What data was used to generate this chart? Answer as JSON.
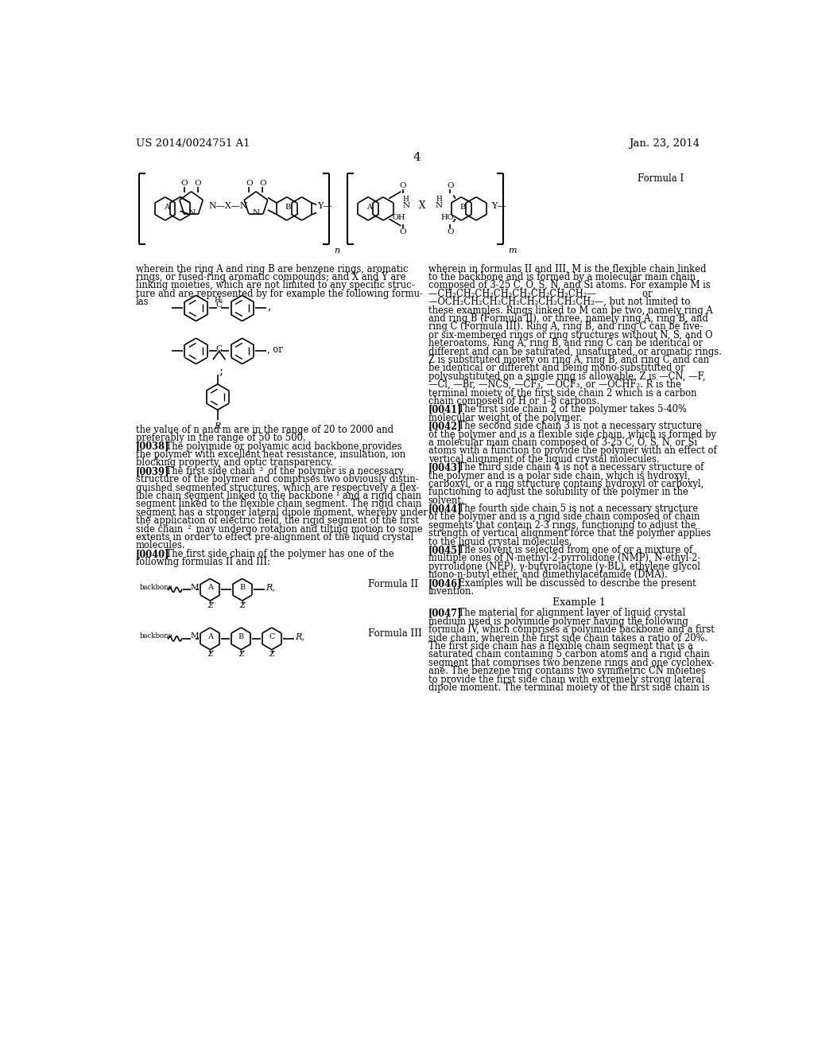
{
  "header_left": "US 2014/0024751 A1",
  "header_right": "Jan. 23, 2014",
  "page_number": "4",
  "formula_I_label": "Formula I",
  "formula_II_label": "Formula II",
  "formula_III_label": "Formula III",
  "background": "#ffffff",
  "text_color": "#000000",
  "body_text_left": [
    "wherein the ring A and ring B are benzene rings, aromatic",
    "rings, or fused-ring aromatic compounds; and X and Y are",
    "linking moieties, which are not limited to any specific struc-",
    "ture and are represented by for example the following formu-",
    "las"
  ],
  "body_text_left2": [
    [
      "normal",
      "the value of n and m are in the range of 20 to 2000 and"
    ],
    [
      "normal",
      "preferably in the range of 50 to 500."
    ],
    [
      "bold",
      "[0038]"
    ],
    [
      "normal",
      "    The polyimide or polyamic acid backbone provides"
    ],
    [
      "normal",
      "the polymer with excellent heat resistance, insulation, ion"
    ],
    [
      "normal",
      "blocking property, and optic transparency."
    ],
    [
      "bold",
      "[0039]"
    ],
    [
      "normal",
      "    The first side chain "
    ],
    [
      "bold",
      "2"
    ],
    [
      "normal",
      " of the polymer is a necessary"
    ],
    [
      "normal",
      "structure of the polymer and comprises two obviously distin-"
    ],
    [
      "normal",
      "guished segmented structures, which are respectively a flex-"
    ],
    [
      "normal",
      "ible chain segment linked to the backbone "
    ],
    [
      "bold",
      "1"
    ],
    [
      "normal",
      " and a rigid chain"
    ],
    [
      "normal",
      "segment linked to the flexible chain segment. The rigid chain"
    ],
    [
      "normal",
      "segment has a stronger lateral dipole moment, whereby under"
    ],
    [
      "normal",
      "the application of electric field, the rigid segment of the first"
    ],
    [
      "normal",
      "side chain "
    ],
    [
      "bold",
      "2"
    ],
    [
      "normal",
      " may undergo rotation and tilting motion to some"
    ],
    [
      "normal",
      "extents in order to effect pre-alignment of the liquid crystal"
    ],
    [
      "normal",
      "molecules."
    ],
    [
      "bold",
      "[0040]"
    ],
    [
      "normal",
      "    The first side chain of the polymer has one of the"
    ],
    [
      "normal",
      "following formulas II and III:"
    ]
  ],
  "body_text_right": [
    [
      "normal",
      "wherein in formulas II and III, M is the flexible chain linked"
    ],
    [
      "normal",
      "to the backbone and is formed by a molecular main chain"
    ],
    [
      "normal",
      "composed of 3-25 C, O, S, N, and Si atoms. For example M is"
    ],
    [
      "normal",
      "—CH₂CH₂CH₂CH₂CH₂CH₂CH₂CH₂—                or"
    ],
    [
      "normal",
      "—OCH₂CH₂CH₂CH₂CH₂CH₂CH₂CH₂—, but not limited to"
    ],
    [
      "normal",
      "these examples. Rings linked to M can be two, namely ring A"
    ],
    [
      "normal",
      "and ring B (Formula II), or three, namely ring A, ring B, and"
    ],
    [
      "normal",
      "ring C (Formula III). Ring A, ring B, and ring C can be five-"
    ],
    [
      "normal",
      "or six-membered rings or ring structures without N, S, and O"
    ],
    [
      "normal",
      "heteroatoms. Ring A, ring B, and ring C can be identical or"
    ],
    [
      "normal",
      "different and can be saturated, unsaturated, or aromatic rings."
    ],
    [
      "normal",
      "Z is substituted moiety on ring A, ring B, and ring C and can"
    ],
    [
      "normal",
      "be identical or different and being mono-substituted or"
    ],
    [
      "normal",
      "polysubstituted on a single ring is allowable. Z is —CN, —F,"
    ],
    [
      "normal",
      "—Cl, —Br, —NCS, —CF₃, —OCF₃, or —OCHF₂. R is the"
    ],
    [
      "normal",
      "terminal moiety of the first side chain "
    ],
    [
      "bold",
      "2"
    ],
    [
      "normal",
      " which is a carbon"
    ],
    [
      "normal",
      "chain composed of H or 1-8 carbons."
    ],
    [
      "bold",
      "[0041]"
    ],
    [
      "normal",
      "    The first side chain "
    ],
    [
      "bold",
      "2"
    ],
    [
      "normal",
      " of the polymer takes 5-40%"
    ],
    [
      "normal",
      "molecular weight of the polymer."
    ],
    [
      "bold",
      "[0042]"
    ],
    [
      "normal",
      "    The second side chain "
    ],
    [
      "bold",
      "3"
    ],
    [
      "normal",
      " is not a necessary structure"
    ],
    [
      "normal",
      "of the polymer and is a flexible side chain, which is formed by"
    ],
    [
      "normal",
      "a molecular main chain composed of 3-25 C, O, S, N, or Si"
    ],
    [
      "normal",
      "atoms with a function to provide the polymer with an effect of"
    ],
    [
      "normal",
      "vertical alignment of the liquid crystal molecules."
    ],
    [
      "bold",
      "[0043]"
    ],
    [
      "normal",
      "    The third side chain "
    ],
    [
      "bold",
      "4"
    ],
    [
      "normal",
      " is not a necessary structure of"
    ],
    [
      "normal",
      "the polymer and is a polar side chain, which is hydroxyl,"
    ],
    [
      "normal",
      "carboxyl, or a ring structure contains hydroxyl or carboxyl,"
    ],
    [
      "normal",
      "functioning to adjust the solubility of the polymer in the"
    ],
    [
      "normal",
      "solvent."
    ],
    [
      "bold",
      "[0044]"
    ],
    [
      "normal",
      "    The fourth side chain "
    ],
    [
      "bold",
      "5"
    ],
    [
      "normal",
      " is not a necessary structure"
    ],
    [
      "normal",
      "of the polymer and is a rigid side chain composed of chain"
    ],
    [
      "normal",
      "segments that contain 2-3 rings, functioning to adjust the"
    ],
    [
      "normal",
      "strength of vertical alignment force that the polymer applies"
    ],
    [
      "normal",
      "to the liquid crystal molecules."
    ],
    [
      "bold",
      "[0045]"
    ],
    [
      "normal",
      "    The solvent is selected from one of or a mixture of"
    ],
    [
      "normal",
      "multiple ones of N-methyl-2-pyrrolidone (NMP), N-ethyl-2-"
    ],
    [
      "normal",
      "pyrrolidone (NEP), γ-butyrolactone (γ-BL), ethylene glycol"
    ],
    [
      "normal",
      "mono-n-butyl ether, and dimethylacetamide (DMA)."
    ],
    [
      "bold",
      "[0046]"
    ],
    [
      "normal",
      "    Examples will be discussed to describe the present"
    ],
    [
      "normal",
      "invention."
    ]
  ],
  "example1_header": "Example 1",
  "example1_text": [
    [
      "bold",
      "[0047]"
    ],
    [
      "normal",
      "    The material for alignment layer of liquid crystal"
    ],
    [
      "normal",
      "medium used is polyimide polymer having the following"
    ],
    [
      "normal",
      "formula IV, which comprises a polyimide backbone and a first"
    ],
    [
      "normal",
      "side chain, wherein the first side chain takes a ratio of 20%."
    ],
    [
      "normal",
      "The first side chain has a flexible chain segment that is a"
    ],
    [
      "normal",
      "saturated chain containing 5 carbon atoms and a rigid chain"
    ],
    [
      "normal",
      "segment that comprises two benzene rings and one cyclohex-"
    ],
    [
      "normal",
      "ane. The benzene ring contains two symmetric CN moieties"
    ],
    [
      "normal",
      "to provide the first side chain with extremely strong lateral"
    ],
    [
      "normal",
      "dipole moment. The terminal moiety of the first side chain is"
    ]
  ]
}
